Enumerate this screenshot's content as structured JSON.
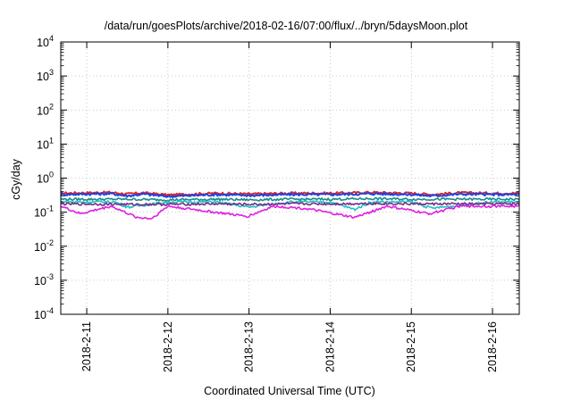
{
  "chart_data": {
    "type": "line",
    "title": "/data/run/goesPlots/archive/2018-02-16/07:00/flux/../bryn/5daysMoon.plot",
    "xlabel": "Coordinated Universal Time (UTC)",
    "ylabel": "cGy/day",
    "yscale": "log",
    "ylim": [
      0.0001,
      10000
    ],
    "xlim": [
      -0.32,
      5.33
    ],
    "grid": true,
    "legend": "none",
    "x_ticks": [
      {
        "value": 0,
        "label": "2018-2-11"
      },
      {
        "value": 1,
        "label": "2018-2-12"
      },
      {
        "value": 2,
        "label": "2018-2-13"
      },
      {
        "value": 3,
        "label": "2018-2-14"
      },
      {
        "value": 4,
        "label": "2018-2-15"
      },
      {
        "value": 5,
        "label": "2018-2-16"
      }
    ],
    "y_ticks": [
      {
        "value": 0.0001,
        "base": "10",
        "exp": "-4"
      },
      {
        "value": 0.001,
        "base": "10",
        "exp": "-3"
      },
      {
        "value": 0.01,
        "base": "10",
        "exp": "-2"
      },
      {
        "value": 0.1,
        "base": "10",
        "exp": "-1"
      },
      {
        "value": 1,
        "base": "10",
        "exp": "0"
      },
      {
        "value": 10,
        "base": "10",
        "exp": "1"
      },
      {
        "value": 100,
        "base": "10",
        "exp": "2"
      },
      {
        "value": 1000,
        "base": "10",
        "exp": "3"
      },
      {
        "value": 10000,
        "base": "10",
        "exp": "4"
      }
    ],
    "series": [
      {
        "color": "#d62728",
        "baseline": 0.36,
        "x": [
          -0.32,
          0.3,
          0.5,
          0.7,
          1.0,
          1.6,
          2.0,
          2.5,
          3.0,
          3.3,
          3.5,
          4.0,
          4.25,
          4.6,
          5.0,
          5.33
        ],
        "y": [
          0.36,
          0.38,
          0.34,
          0.37,
          0.32,
          0.36,
          0.34,
          0.36,
          0.36,
          0.37,
          0.38,
          0.36,
          0.33,
          0.37,
          0.36,
          0.36
        ]
      },
      {
        "color": "#2040e0",
        "baseline": 0.33,
        "x": [
          -0.32,
          0.3,
          0.5,
          0.7,
          1.0,
          1.6,
          2.0,
          2.5,
          3.0,
          3.3,
          3.5,
          4.0,
          4.25,
          4.6,
          5.0,
          5.33
        ],
        "y": [
          0.33,
          0.35,
          0.3,
          0.34,
          0.29,
          0.33,
          0.31,
          0.33,
          0.33,
          0.34,
          0.35,
          0.33,
          0.3,
          0.34,
          0.33,
          0.33
        ]
      },
      {
        "color": "#1a8a8a",
        "baseline": 0.24,
        "x": [
          -0.32,
          0.5,
          1.0,
          1.6,
          2.0,
          2.5,
          3.0,
          3.5,
          4.0,
          4.6,
          5.0,
          5.33
        ],
        "y": [
          0.24,
          0.24,
          0.23,
          0.24,
          0.23,
          0.24,
          0.24,
          0.25,
          0.24,
          0.24,
          0.24,
          0.24
        ]
      },
      {
        "color": "#20c0c0",
        "baseline": 0.2,
        "x": [
          -0.32,
          0.35,
          0.5,
          1.0,
          1.6,
          2.0,
          2.5,
          3.0,
          3.3,
          3.5,
          4.0,
          4.25,
          5.0,
          5.33
        ],
        "y": [
          0.2,
          0.2,
          0.14,
          0.2,
          0.2,
          0.14,
          0.2,
          0.2,
          0.12,
          0.2,
          0.2,
          0.13,
          0.2,
          0.2
        ]
      },
      {
        "color": "#7a2a8a",
        "baseline": 0.175,
        "x": [
          -0.32,
          0.5,
          1.0,
          1.6,
          2.0,
          2.5,
          3.0,
          3.5,
          4.0,
          4.6,
          5.0,
          5.33
        ],
        "y": [
          0.175,
          0.17,
          0.17,
          0.175,
          0.17,
          0.175,
          0.175,
          0.18,
          0.175,
          0.175,
          0.175,
          0.175
        ]
      },
      {
        "color": "#e020e0",
        "baseline": 0.15,
        "x": [
          -0.32,
          -0.08,
          0.3,
          0.62,
          0.8,
          1.0,
          1.98,
          2.3,
          2.68,
          3.3,
          3.7,
          4.22,
          4.6,
          5.0,
          5.33
        ],
        "y": [
          0.15,
          0.09,
          0.15,
          0.07,
          0.065,
          0.15,
          0.075,
          0.15,
          0.13,
          0.07,
          0.15,
          0.09,
          0.15,
          0.15,
          0.15
        ]
      }
    ]
  }
}
